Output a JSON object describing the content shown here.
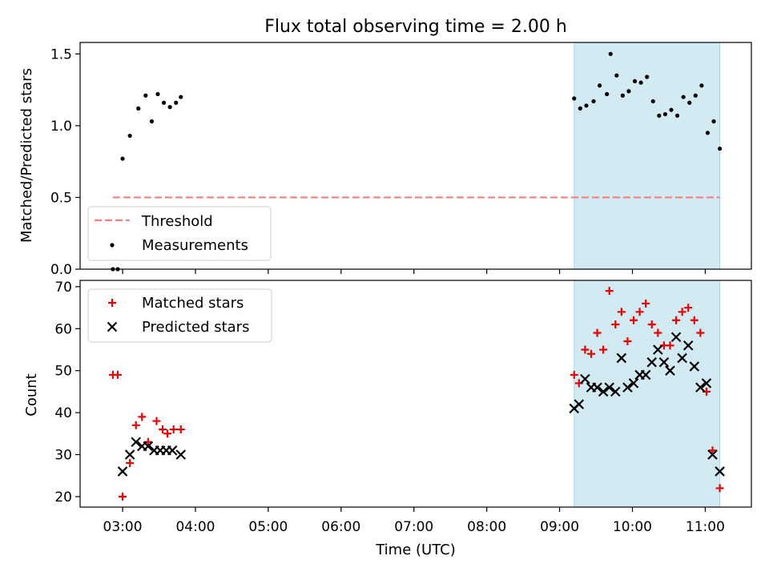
{
  "figure_title": "Flux total observing time = 2.00 h",
  "colors": {
    "threshold": "#f47f7f",
    "measurements": "#000000",
    "matched": "#ee0000",
    "predicted": "#000000",
    "highlight": "#add8e6"
  },
  "chart_data": [
    {
      "type": "scatter",
      "title": "",
      "ylabel": "Matched/Predicted stars",
      "ylim": [
        0,
        1.58
      ],
      "yticks": [
        0.0,
        0.5,
        1.0,
        1.5
      ],
      "ytick_labels": [
        "0.0",
        "0.5",
        "1.0",
        "1.5"
      ],
      "xlim": [
        "02:25",
        "11:38"
      ],
      "grid": false,
      "legend_placement": "lower-left",
      "highlight_span": [
        "09:12",
        "11:12"
      ],
      "threshold": {
        "name": "Threshold",
        "y": 0.5,
        "x": [
          "02:52",
          "11:12"
        ],
        "style": "dashed"
      },
      "series": [
        {
          "name": "Measurements",
          "marker": "dot",
          "points": [
            [
              "02:52",
              0.0
            ],
            [
              "02:56",
              0.0
            ],
            [
              "03:00",
              0.77
            ],
            [
              "03:06",
              0.93
            ],
            [
              "03:13",
              1.12
            ],
            [
              "03:19",
              1.21
            ],
            [
              "03:24",
              1.03
            ],
            [
              "03:29",
              1.22
            ],
            [
              "03:34",
              1.16
            ],
            [
              "03:39",
              1.13
            ],
            [
              "03:44",
              1.16
            ],
            [
              "03:48",
              1.2
            ],
            [
              "09:12",
              1.19
            ],
            [
              "09:17",
              1.12
            ],
            [
              "09:22",
              1.14
            ],
            [
              "09:28",
              1.17
            ],
            [
              "09:33",
              1.28
            ],
            [
              "09:39",
              1.22
            ],
            [
              "09:42",
              1.5
            ],
            [
              "09:47",
              1.35
            ],
            [
              "09:52",
              1.21
            ],
            [
              "09:57",
              1.24
            ],
            [
              "10:02",
              1.31
            ],
            [
              "10:07",
              1.3
            ],
            [
              "10:12",
              1.34
            ],
            [
              "10:17",
              1.17
            ],
            [
              "10:22",
              1.07
            ],
            [
              "10:27",
              1.08
            ],
            [
              "10:32",
              1.11
            ],
            [
              "10:37",
              1.07
            ],
            [
              "10:42",
              1.2
            ],
            [
              "10:47",
              1.16
            ],
            [
              "10:52",
              1.21
            ],
            [
              "10:57",
              1.28
            ],
            [
              "11:02",
              0.95
            ],
            [
              "11:07",
              1.03
            ],
            [
              "11:12",
              0.84
            ]
          ]
        }
      ]
    },
    {
      "type": "scatter",
      "title": "",
      "xlabel": "Time (UTC)",
      "ylabel": "Count",
      "ylim": [
        17.5,
        71.5
      ],
      "yticks": [
        20,
        30,
        40,
        50,
        60,
        70
      ],
      "ytick_labels": [
        "20",
        "30",
        "40",
        "50",
        "60",
        "70"
      ],
      "xlim": [
        "02:25",
        "11:38"
      ],
      "xticks": [
        "03:00",
        "04:00",
        "05:00",
        "06:00",
        "07:00",
        "08:00",
        "09:00",
        "10:00",
        "11:00"
      ],
      "xtick_labels": [
        "03:00",
        "04:00",
        "05:00",
        "06:00",
        "07:00",
        "08:00",
        "09:00",
        "10:00",
        "11:00"
      ],
      "grid": false,
      "legend_placement": "top-left",
      "highlight_span": [
        "09:12",
        "11:12"
      ],
      "series": [
        {
          "name": "Matched stars",
          "marker": "plus",
          "points": [
            [
              "02:52",
              49
            ],
            [
              "02:56",
              49
            ],
            [
              "03:00",
              20
            ],
            [
              "03:06",
              28
            ],
            [
              "03:11",
              37
            ],
            [
              "03:16",
              39
            ],
            [
              "03:21",
              33
            ],
            [
              "03:28",
              38
            ],
            [
              "03:33",
              36
            ],
            [
              "03:37",
              35
            ],
            [
              "03:42",
              36
            ],
            [
              "03:48",
              36
            ],
            [
              "09:12",
              49
            ],
            [
              "09:16",
              47
            ],
            [
              "09:21",
              55
            ],
            [
              "09:26",
              54
            ],
            [
              "09:31",
              59
            ],
            [
              "09:36",
              55
            ],
            [
              "09:41",
              69
            ],
            [
              "09:46",
              61
            ],
            [
              "09:51",
              64
            ],
            [
              "09:56",
              57
            ],
            [
              "10:01",
              62
            ],
            [
              "10:06",
              64
            ],
            [
              "10:11",
              66
            ],
            [
              "10:16",
              61
            ],
            [
              "10:21",
              59
            ],
            [
              "10:26",
              56
            ],
            [
              "10:31",
              56
            ],
            [
              "10:36",
              62
            ],
            [
              "10:41",
              64
            ],
            [
              "10:46",
              65
            ],
            [
              "10:51",
              62
            ],
            [
              "10:56",
              59
            ],
            [
              "11:01",
              45
            ],
            [
              "11:06",
              31
            ],
            [
              "11:12",
              22
            ]
          ]
        },
        {
          "name": "Predicted stars",
          "marker": "x",
          "points": [
            [
              "03:00",
              26
            ],
            [
              "03:06",
              30
            ],
            [
              "03:11",
              33
            ],
            [
              "03:16",
              32
            ],
            [
              "03:21",
              32
            ],
            [
              "03:26",
              31
            ],
            [
              "03:31",
              31
            ],
            [
              "03:36",
              31
            ],
            [
              "03:41",
              31
            ],
            [
              "03:48",
              30
            ],
            [
              "09:12",
              41
            ],
            [
              "09:16",
              42
            ],
            [
              "09:21",
              48
            ],
            [
              "09:26",
              46
            ],
            [
              "09:31",
              46
            ],
            [
              "09:36",
              45
            ],
            [
              "09:41",
              46
            ],
            [
              "09:46",
              45
            ],
            [
              "09:51",
              53
            ],
            [
              "09:56",
              46
            ],
            [
              "10:01",
              47
            ],
            [
              "10:06",
              49
            ],
            [
              "10:11",
              49
            ],
            [
              "10:16",
              52
            ],
            [
              "10:21",
              55
            ],
            [
              "10:26",
              52
            ],
            [
              "10:31",
              50
            ],
            [
              "10:36",
              58
            ],
            [
              "10:41",
              53
            ],
            [
              "10:46",
              56
            ],
            [
              "10:51",
              51
            ],
            [
              "10:56",
              46
            ],
            [
              "11:01",
              47
            ],
            [
              "11:06",
              30
            ],
            [
              "11:12",
              26
            ]
          ]
        }
      ]
    }
  ]
}
